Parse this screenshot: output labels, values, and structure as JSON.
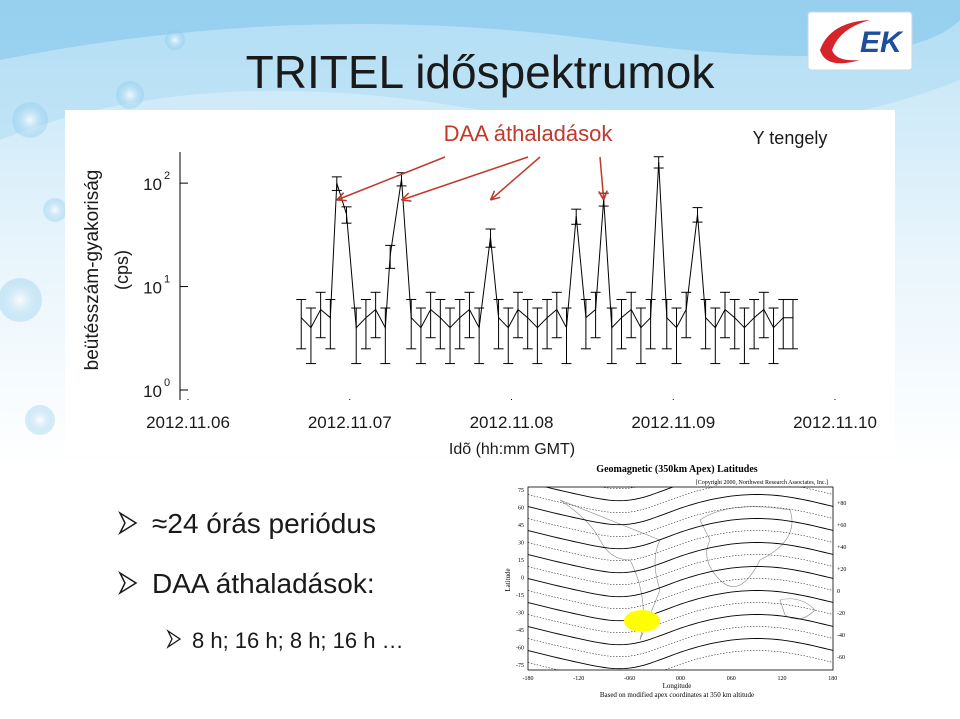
{
  "title": "TRITEL időspektrumok",
  "logo": {
    "text": "EK"
  },
  "y_axis_outer_label": "beütésszám-gyakoriság",
  "chart_data": {
    "type": "errorbar",
    "y_unit_label": "(cps)",
    "xlabel": "Idõ (hh:mm GMT)",
    "annotations": [
      "DAA áthaladások",
      "Y tengely"
    ],
    "log_y": true,
    "color": "#000000",
    "xlim": [
      6,
      10
    ],
    "xticks": [
      {
        "value": 6,
        "label": "2012.11.06"
      },
      {
        "value": 7,
        "label": "2012.11.07"
      },
      {
        "value": 8,
        "label": "2012.11.08"
      },
      {
        "value": 9,
        "label": "2012.11.09"
      },
      {
        "value": 10,
        "label": "2012.11.10"
      }
    ],
    "ylim": [
      0.8,
      200
    ],
    "yticks": [
      {
        "value": 1,
        "label": "10",
        "power": "0"
      },
      {
        "value": 10,
        "label": "10",
        "power": "1"
      },
      {
        "value": 100,
        "label": "10",
        "power": "2"
      }
    ],
    "x": [
      6.7,
      6.76,
      6.82,
      6.88,
      6.92,
      6.98,
      7.04,
      7.1,
      7.16,
      7.22,
      7.25,
      7.32,
      7.38,
      7.44,
      7.5,
      7.56,
      7.62,
      7.68,
      7.74,
      7.8,
      7.87,
      7.92,
      7.98,
      8.04,
      8.1,
      8.16,
      8.22,
      8.28,
      8.34,
      8.4,
      8.46,
      8.52,
      8.57,
      8.62,
      8.68,
      8.74,
      8.8,
      8.86,
      8.91,
      8.96,
      9.02,
      9.08,
      9.15,
      9.2,
      9.26,
      9.32,
      9.38,
      9.44,
      9.5,
      9.56,
      9.62,
      9.68,
      9.74
    ],
    "values": [
      5,
      4,
      6,
      5,
      100,
      50,
      4,
      5,
      6,
      4,
      20,
      110,
      5,
      4,
      6,
      5,
      4,
      5,
      6,
      4,
      30,
      5,
      4,
      6,
      5,
      4,
      5,
      6,
      4,
      48,
      5,
      6,
      70,
      4,
      5,
      6,
      4,
      5,
      160,
      5,
      4,
      6,
      50,
      5,
      4,
      6,
      5,
      4,
      5,
      6,
      4,
      5,
      5
    ],
    "errors": [
      2.5,
      2.2,
      2.8,
      2.5,
      15,
      9,
      2.2,
      2.5,
      2.8,
      2.2,
      5,
      16,
      2.5,
      2.2,
      2.8,
      2.5,
      2.2,
      2.5,
      2.8,
      2.2,
      6,
      2.5,
      2.2,
      2.8,
      2.5,
      2.2,
      2.5,
      2.8,
      2.2,
      8,
      2.5,
      2.8,
      10,
      2.2,
      2.5,
      2.8,
      2.2,
      2.5,
      20,
      2.5,
      2.2,
      2.8,
      8,
      2.5,
      2.2,
      2.8,
      2.5,
      2.2,
      2.5,
      2.8,
      2.2,
      2.5,
      2.5
    ],
    "arrow_targets": [
      6.92,
      7.32,
      7.87,
      8.57
    ]
  },
  "bullets": [
    "≈24 órás periódus",
    "DAA áthaladások:"
  ],
  "sub_bullet": "8 h; 16 h; 8 h; 16 h …",
  "map": {
    "title": "Geomagnetic (350km Apex) Latitudes",
    "copyright": "[Copyright 2000, Northwest Research Associates, Inc.]",
    "ylabel": "Latitude",
    "xlabel": "Longitude",
    "footnote": "Based on modified apex coordinates at 350 km altitude",
    "left_ticks": [
      "75",
      "60",
      "45",
      "30",
      "15",
      "0",
      "-15",
      "-30",
      "-45",
      "-60",
      "-75"
    ],
    "right_ticks": [
      "+80",
      "+60",
      "+40",
      "+20",
      "0",
      "-20",
      "-40",
      "-60"
    ],
    "bottom_ticks": [
      "-180",
      "-120",
      "-060",
      "000",
      "060",
      "120",
      "180"
    ]
  }
}
